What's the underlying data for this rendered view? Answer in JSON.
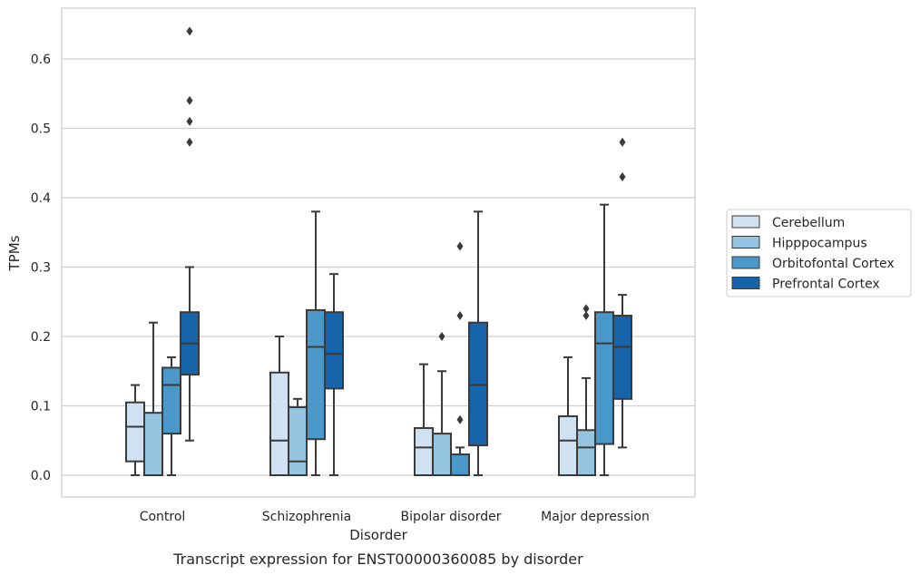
{
  "chart_data": {
    "type": "box",
    "xlabel": "Disorder",
    "ylabel": "TPMs",
    "caption": "Transcript expression for ENST00000360085 by disorder",
    "ylim": [
      -0.03,
      0.675
    ],
    "yticks": [
      "0.0",
      "0.1",
      "0.2",
      "0.3",
      "0.4",
      "0.5",
      "0.6"
    ],
    "grid": "horizontal",
    "legend_position": "right",
    "categories": [
      "Control",
      "Schizophrenia",
      "Bipolar disorder",
      "Major depression"
    ],
    "series": [
      {
        "name": "Cerebellum",
        "color": "#d0e1f2",
        "boxes": [
          {
            "whislo": 0.0,
            "q1": 0.02,
            "med": 0.07,
            "q3": 0.105,
            "whishi": 0.13,
            "fliers": []
          },
          {
            "whislo": 0.0,
            "q1": 0.0,
            "med": 0.05,
            "q3": 0.148,
            "whishi": 0.2,
            "fliers": []
          },
          {
            "whislo": 0.0,
            "q1": 0.0,
            "med": 0.04,
            "q3": 0.068,
            "whishi": 0.16,
            "fliers": []
          },
          {
            "whislo": 0.0,
            "q1": 0.0,
            "med": 0.05,
            "q3": 0.085,
            "whishi": 0.17,
            "fliers": []
          }
        ]
      },
      {
        "name": "Hipppocampus",
        "color": "#94c4df",
        "boxes": [
          {
            "whislo": 0.0,
            "q1": 0.0,
            "med": 0.0,
            "q3": 0.09,
            "whishi": 0.22,
            "fliers": []
          },
          {
            "whislo": 0.0,
            "q1": 0.0,
            "med": 0.02,
            "q3": 0.098,
            "whishi": 0.11,
            "fliers": []
          },
          {
            "whislo": 0.0,
            "q1": 0.0,
            "med": 0.0,
            "q3": 0.06,
            "whishi": 0.15,
            "fliers": [
              0.2
            ]
          },
          {
            "whislo": 0.0,
            "q1": 0.0,
            "med": 0.04,
            "q3": 0.065,
            "whishi": 0.14,
            "fliers": [
              0.23,
              0.24
            ]
          }
        ]
      },
      {
        "name": "Orbitofontal Cortex",
        "color": "#4a98c9",
        "boxes": [
          {
            "whislo": 0.0,
            "q1": 0.06,
            "med": 0.13,
            "q3": 0.155,
            "whishi": 0.17,
            "fliers": []
          },
          {
            "whislo": 0.0,
            "q1": 0.052,
            "med": 0.185,
            "q3": 0.238,
            "whishi": 0.38,
            "fliers": []
          },
          {
            "whislo": 0.0,
            "q1": 0.0,
            "med": 0.0,
            "q3": 0.03,
            "whishi": 0.04,
            "fliers": [
              0.08,
              0.23,
              0.33
            ]
          },
          {
            "whislo": 0.0,
            "q1": 0.045,
            "med": 0.19,
            "q3": 0.235,
            "whishi": 0.39,
            "fliers": []
          }
        ]
      },
      {
        "name": "Prefrontal Cortex",
        "color": "#1764ab",
        "boxes": [
          {
            "whislo": 0.05,
            "q1": 0.145,
            "med": 0.19,
            "q3": 0.235,
            "whishi": 0.3,
            "fliers": [
              0.48,
              0.51,
              0.54,
              0.64
            ]
          },
          {
            "whislo": 0.0,
            "q1": 0.125,
            "med": 0.175,
            "q3": 0.235,
            "whishi": 0.29,
            "fliers": []
          },
          {
            "whislo": 0.0,
            "q1": 0.043,
            "med": 0.13,
            "q3": 0.22,
            "whishi": 0.38,
            "fliers": []
          },
          {
            "whislo": 0.04,
            "q1": 0.11,
            "med": 0.185,
            "q3": 0.23,
            "whishi": 0.26,
            "fliers": [
              0.43,
              0.48
            ]
          }
        ]
      }
    ]
  }
}
